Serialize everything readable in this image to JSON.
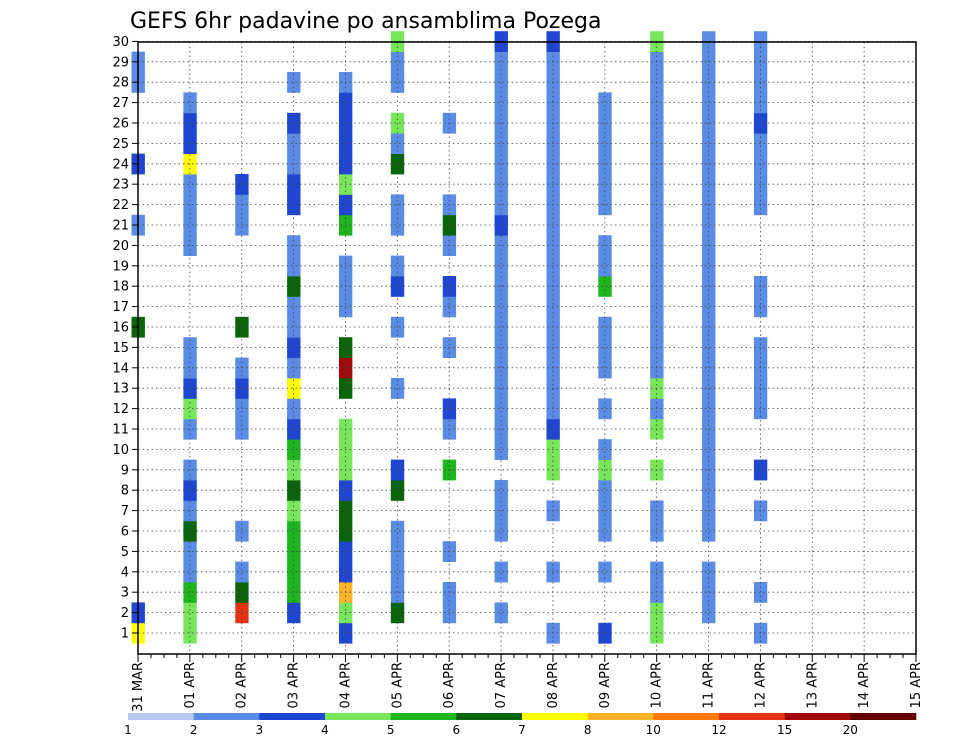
{
  "chart_data": {
    "type": "heatmap",
    "title": "GEFS 6hr padavine po ansamblima Pozega",
    "x_ticks": [
      "31 MAR",
      "01 APR",
      "02 APR",
      "03 APR",
      "04 APR",
      "05 APR",
      "06 APR",
      "07 APR",
      "08 APR",
      "09 APR",
      "10 APR",
      "11 APR",
      "12 APR",
      "13 APR",
      "14 APR",
      "15 APR"
    ],
    "y_ticks": [
      1,
      2,
      3,
      4,
      5,
      6,
      7,
      8,
      9,
      10,
      11,
      12,
      13,
      14,
      15,
      16,
      17,
      18,
      19,
      20,
      21,
      22,
      23,
      24,
      25,
      26,
      27,
      28,
      29,
      30
    ],
    "grid": true,
    "colorbar": {
      "levels": [
        "1",
        "2",
        "3",
        "4",
        "5",
        "6",
        "7",
        "8",
        "10",
        "12",
        "15",
        "20"
      ],
      "colors": [
        "#b4c8f0",
        "#5a8ce6",
        "#1e46d2",
        "#78e65a",
        "#1eb41e",
        "#0a640a",
        "#ffff00",
        "#ffb428",
        "#ff7800",
        "#e63214",
        "#a00a0a",
        "#640000"
      ]
    },
    "cells": [
      [
        0,
        1,
        6
      ],
      [
        0,
        2,
        2
      ],
      [
        0,
        16,
        5
      ],
      [
        0,
        21,
        1
      ],
      [
        0,
        24,
        2
      ],
      [
        0,
        28,
        1
      ],
      [
        0,
        29,
        1
      ],
      [
        1,
        1,
        3
      ],
      [
        1,
        2,
        3
      ],
      [
        1,
        3,
        4
      ],
      [
        1,
        4,
        1
      ],
      [
        1,
        5,
        1
      ],
      [
        1,
        6,
        5
      ],
      [
        1,
        7,
        1
      ],
      [
        1,
        8,
        2
      ],
      [
        1,
        9,
        1
      ],
      [
        1,
        11,
        1
      ],
      [
        1,
        12,
        3
      ],
      [
        1,
        13,
        2
      ],
      [
        1,
        14,
        1
      ],
      [
        1,
        15,
        1
      ],
      [
        1,
        20,
        1
      ],
      [
        1,
        21,
        1
      ],
      [
        1,
        22,
        1
      ],
      [
        1,
        23,
        1
      ],
      [
        1,
        24,
        6
      ],
      [
        1,
        25,
        2
      ],
      [
        1,
        26,
        2
      ],
      [
        1,
        27,
        1
      ],
      [
        2,
        2,
        9
      ],
      [
        2,
        3,
        5
      ],
      [
        2,
        4,
        1
      ],
      [
        2,
        6,
        1
      ],
      [
        2,
        11,
        1
      ],
      [
        2,
        12,
        1
      ],
      [
        2,
        13,
        2
      ],
      [
        2,
        14,
        1
      ],
      [
        2,
        16,
        5
      ],
      [
        2,
        21,
        1
      ],
      [
        2,
        22,
        1
      ],
      [
        2,
        23,
        2
      ],
      [
        3,
        2,
        2
      ],
      [
        3,
        3,
        4
      ],
      [
        3,
        4,
        4
      ],
      [
        3,
        5,
        4
      ],
      [
        3,
        6,
        4
      ],
      [
        3,
        7,
        3
      ],
      [
        3,
        8,
        5
      ],
      [
        3,
        9,
        3
      ],
      [
        3,
        10,
        4
      ],
      [
        3,
        11,
        2
      ],
      [
        3,
        12,
        1
      ],
      [
        3,
        13,
        6
      ],
      [
        3,
        14,
        1
      ],
      [
        3,
        15,
        2
      ],
      [
        3,
        16,
        1
      ],
      [
        3,
        17,
        1
      ],
      [
        3,
        18,
        5
      ],
      [
        3,
        19,
        1
      ],
      [
        3,
        20,
        1
      ],
      [
        3,
        22,
        2
      ],
      [
        3,
        23,
        2
      ],
      [
        3,
        24,
        1
      ],
      [
        3,
        25,
        1
      ],
      [
        3,
        26,
        2
      ],
      [
        3,
        28,
        1
      ],
      [
        4,
        1,
        2
      ],
      [
        4,
        2,
        3
      ],
      [
        4,
        3,
        7
      ],
      [
        4,
        4,
        2
      ],
      [
        4,
        5,
        2
      ],
      [
        4,
        6,
        5
      ],
      [
        4,
        7,
        5
      ],
      [
        4,
        8,
        2
      ],
      [
        4,
        9,
        3
      ],
      [
        4,
        10,
        3
      ],
      [
        4,
        11,
        3
      ],
      [
        4,
        13,
        5
      ],
      [
        4,
        14,
        10
      ],
      [
        4,
        15,
        5
      ],
      [
        4,
        17,
        1
      ],
      [
        4,
        18,
        1
      ],
      [
        4,
        19,
        1
      ],
      [
        4,
        21,
        4
      ],
      [
        4,
        22,
        2
      ],
      [
        4,
        23,
        3
      ],
      [
        4,
        24,
        2
      ],
      [
        4,
        25,
        2
      ],
      [
        4,
        26,
        2
      ],
      [
        4,
        27,
        2
      ],
      [
        4,
        28,
        1
      ],
      [
        5,
        2,
        5
      ],
      [
        5,
        3,
        1
      ],
      [
        5,
        4,
        1
      ],
      [
        5,
        5,
        1
      ],
      [
        5,
        6,
        1
      ],
      [
        5,
        8,
        5
      ],
      [
        5,
        9,
        2
      ],
      [
        5,
        13,
        1
      ],
      [
        5,
        16,
        1
      ],
      [
        5,
        18,
        2
      ],
      [
        5,
        19,
        1
      ],
      [
        5,
        21,
        1
      ],
      [
        5,
        22,
        1
      ],
      [
        5,
        24,
        5
      ],
      [
        5,
        25,
        1
      ],
      [
        5,
        26,
        3
      ],
      [
        5,
        28,
        1
      ],
      [
        5,
        29,
        1
      ],
      [
        5,
        30,
        3
      ],
      [
        6,
        2,
        1
      ],
      [
        6,
        3,
        1
      ],
      [
        6,
        5,
        1
      ],
      [
        6,
        9,
        4
      ],
      [
        6,
        11,
        1
      ],
      [
        6,
        12,
        2
      ],
      [
        6,
        15,
        1
      ],
      [
        6,
        17,
        1
      ],
      [
        6,
        18,
        2
      ],
      [
        6,
        20,
        1
      ],
      [
        6,
        21,
        5
      ],
      [
        6,
        22,
        1
      ],
      [
        6,
        26,
        1
      ],
      [
        7,
        2,
        1
      ],
      [
        7,
        4,
        1
      ],
      [
        7,
        6,
        1
      ],
      [
        7,
        7,
        1
      ],
      [
        7,
        8,
        1
      ],
      [
        7,
        10,
        1
      ],
      [
        7,
        11,
        1
      ],
      [
        7,
        12,
        1
      ],
      [
        7,
        13,
        1
      ],
      [
        7,
        14,
        1
      ],
      [
        7,
        15,
        1
      ],
      [
        7,
        16,
        1
      ],
      [
        7,
        17,
        1
      ],
      [
        7,
        18,
        1
      ],
      [
        7,
        19,
        1
      ],
      [
        7,
        20,
        1
      ],
      [
        7,
        21,
        2
      ],
      [
        7,
        22,
        1
      ],
      [
        7,
        23,
        1
      ],
      [
        7,
        24,
        1
      ],
      [
        7,
        25,
        1
      ],
      [
        7,
        26,
        1
      ],
      [
        7,
        27,
        1
      ],
      [
        7,
        28,
        1
      ],
      [
        7,
        29,
        1
      ],
      [
        7,
        30,
        2
      ],
      [
        8,
        1,
        1
      ],
      [
        8,
        4,
        1
      ],
      [
        8,
        7,
        1
      ],
      [
        8,
        9,
        3
      ],
      [
        8,
        10,
        3
      ],
      [
        8,
        11,
        2
      ],
      [
        8,
        12,
        1
      ],
      [
        8,
        13,
        1
      ],
      [
        8,
        14,
        1
      ],
      [
        8,
        15,
        1
      ],
      [
        8,
        16,
        1
      ],
      [
        8,
        17,
        1
      ],
      [
        8,
        18,
        1
      ],
      [
        8,
        19,
        1
      ],
      [
        8,
        20,
        1
      ],
      [
        8,
        21,
        1
      ],
      [
        8,
        22,
        1
      ],
      [
        8,
        23,
        1
      ],
      [
        8,
        24,
        1
      ],
      [
        8,
        25,
        1
      ],
      [
        8,
        26,
        1
      ],
      [
        8,
        27,
        1
      ],
      [
        8,
        28,
        1
      ],
      [
        8,
        29,
        1
      ],
      [
        8,
        30,
        2
      ],
      [
        9,
        1,
        2
      ],
      [
        9,
        4,
        1
      ],
      [
        9,
        6,
        1
      ],
      [
        9,
        7,
        1
      ],
      [
        9,
        8,
        1
      ],
      [
        9,
        9,
        3
      ],
      [
        9,
        10,
        1
      ],
      [
        9,
        12,
        1
      ],
      [
        9,
        14,
        1
      ],
      [
        9,
        15,
        1
      ],
      [
        9,
        16,
        1
      ],
      [
        9,
        18,
        4
      ],
      [
        9,
        19,
        1
      ],
      [
        9,
        20,
        1
      ],
      [
        9,
        22,
        1
      ],
      [
        9,
        23,
        1
      ],
      [
        9,
        24,
        1
      ],
      [
        9,
        25,
        1
      ],
      [
        9,
        26,
        1
      ],
      [
        9,
        27,
        1
      ],
      [
        10,
        1,
        3
      ],
      [
        10,
        2,
        3
      ],
      [
        10,
        3,
        1
      ],
      [
        10,
        4,
        1
      ],
      [
        10,
        6,
        1
      ],
      [
        10,
        7,
        1
      ],
      [
        10,
        9,
        3
      ],
      [
        10,
        11,
        3
      ],
      [
        10,
        12,
        1
      ],
      [
        10,
        13,
        3
      ],
      [
        10,
        14,
        1
      ],
      [
        10,
        15,
        1
      ],
      [
        10,
        16,
        1
      ],
      [
        10,
        17,
        1
      ],
      [
        10,
        18,
        1
      ],
      [
        10,
        19,
        1
      ],
      [
        10,
        20,
        1
      ],
      [
        10,
        21,
        1
      ],
      [
        10,
        22,
        1
      ],
      [
        10,
        23,
        1
      ],
      [
        10,
        24,
        1
      ],
      [
        10,
        25,
        1
      ],
      [
        10,
        26,
        1
      ],
      [
        10,
        27,
        1
      ],
      [
        10,
        28,
        1
      ],
      [
        10,
        29,
        1
      ],
      [
        10,
        30,
        3
      ],
      [
        11,
        2,
        1
      ],
      [
        11,
        3,
        1
      ],
      [
        11,
        4,
        1
      ],
      [
        11,
        6,
        1
      ],
      [
        11,
        7,
        1
      ],
      [
        11,
        8,
        1
      ],
      [
        11,
        9,
        1
      ],
      [
        11,
        10,
        1
      ],
      [
        11,
        11,
        1
      ],
      [
        11,
        12,
        1
      ],
      [
        11,
        13,
        1
      ],
      [
        11,
        14,
        1
      ],
      [
        11,
        15,
        1
      ],
      [
        11,
        16,
        1
      ],
      [
        11,
        17,
        1
      ],
      [
        11,
        18,
        1
      ],
      [
        11,
        19,
        1
      ],
      [
        11,
        20,
        1
      ],
      [
        11,
        21,
        1
      ],
      [
        11,
        22,
        1
      ],
      [
        11,
        23,
        1
      ],
      [
        11,
        24,
        1
      ],
      [
        11,
        25,
        1
      ],
      [
        11,
        26,
        1
      ],
      [
        11,
        27,
        1
      ],
      [
        11,
        28,
        1
      ],
      [
        11,
        29,
        1
      ],
      [
        11,
        30,
        1
      ],
      [
        12,
        1,
        1
      ],
      [
        12,
        3,
        1
      ],
      [
        12,
        7,
        1
      ],
      [
        12,
        9,
        2
      ],
      [
        12,
        12,
        1
      ],
      [
        12,
        13,
        1
      ],
      [
        12,
        14,
        1
      ],
      [
        12,
        15,
        1
      ],
      [
        12,
        17,
        1
      ],
      [
        12,
        18,
        1
      ],
      [
        12,
        22,
        1
      ],
      [
        12,
        23,
        1
      ],
      [
        12,
        24,
        1
      ],
      [
        12,
        25,
        1
      ],
      [
        12,
        26,
        2
      ],
      [
        12,
        27,
        1
      ],
      [
        12,
        28,
        1
      ],
      [
        12,
        29,
        1
      ],
      [
        12,
        30,
        1
      ]
    ]
  },
  "colors": {
    "frame": "#000000",
    "grid": "#444444",
    "background": "#ffffff"
  }
}
